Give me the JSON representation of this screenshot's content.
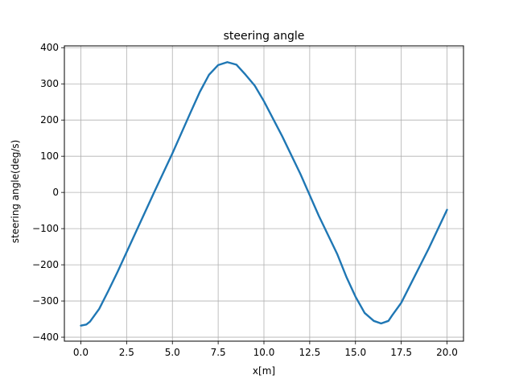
{
  "chart_data": {
    "type": "line",
    "title": "steering angle",
    "xlabel": "x[m]",
    "ylabel": "steering angle(deg/s)",
    "xlim": [
      -0.9,
      20.9
    ],
    "ylim": [
      -411,
      405
    ],
    "xticks": [
      0.0,
      2.5,
      5.0,
      7.5,
      10.0,
      12.5,
      15.0,
      17.5,
      20.0
    ],
    "xtick_labels": [
      "0.0",
      "2.5",
      "5.0",
      "7.5",
      "10.0",
      "12.5",
      "15.0",
      "17.5",
      "20.0"
    ],
    "yticks": [
      -400,
      -300,
      -200,
      -100,
      0,
      100,
      200,
      300,
      400
    ],
    "ytick_labels": [
      "−400",
      "−300",
      "−200",
      "−100",
      "0",
      "100",
      "200",
      "300",
      "400"
    ],
    "grid": true,
    "series": [
      {
        "color": "#1f77b4",
        "x": [
          0.0,
          0.3,
          0.5,
          1.0,
          1.5,
          2.0,
          2.5,
          3.0,
          4.0,
          5.0,
          6.0,
          6.5,
          7.0,
          7.5,
          8.0,
          8.5,
          9.0,
          9.5,
          10.0,
          11.0,
          12.0,
          13.0,
          14.0,
          14.5,
          15.0,
          15.5,
          16.0,
          16.4,
          16.8,
          17.0,
          17.5,
          18.0,
          19.0,
          20.0
        ],
        "y": [
          -368,
          -365,
          -357,
          -322,
          -272,
          -220,
          -165,
          -110,
          0,
          108,
          222,
          278,
          325,
          352,
          360,
          353,
          325,
          295,
          252,
          155,
          50,
          -65,
          -170,
          -233,
          -288,
          -333,
          -355,
          -362,
          -355,
          -340,
          -305,
          -255,
          -155,
          -48
        ]
      }
    ]
  }
}
